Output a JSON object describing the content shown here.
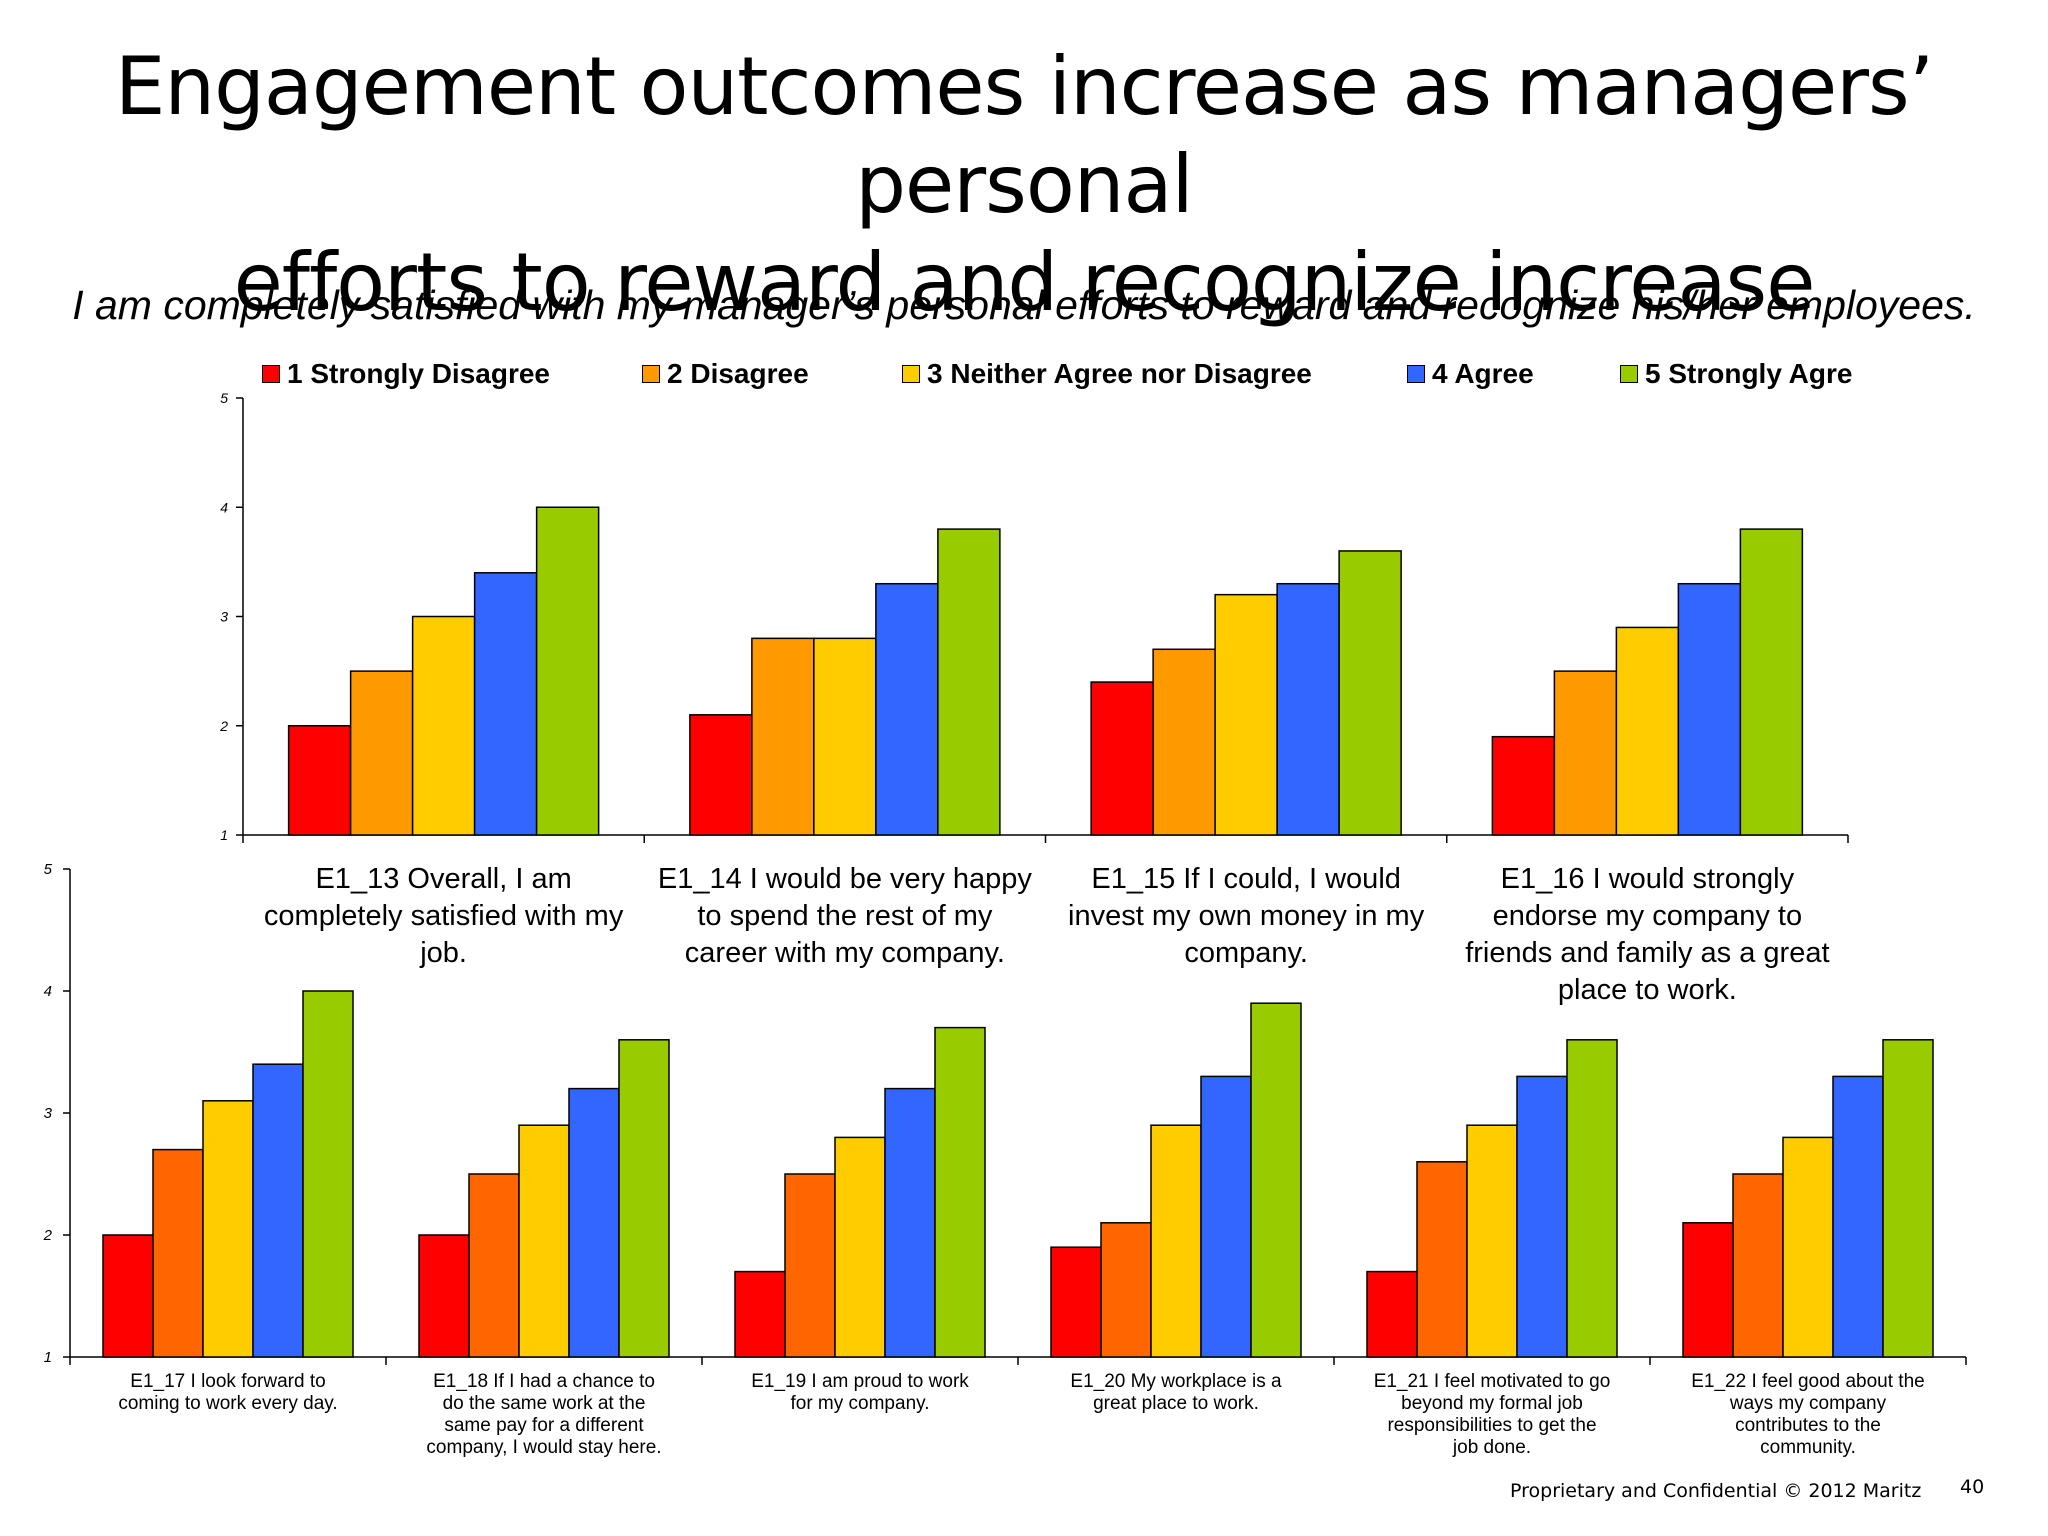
{
  "title_line1": "Engagement outcomes increase as managers’ personal",
  "title_line2": "efforts to reward and recognize increase",
  "subtitle": "I am completely satisfied with my manager’s personal efforts to reward and recognize his/her employees.",
  "legend": [
    {
      "label": "1 Strongly Disagree",
      "color": "#ff0000"
    },
    {
      "label": "2 Disagree",
      "color": "#ff9900"
    },
    {
      "label": "3 Neither Agree nor Disagree",
      "color": "#ffcc00"
    },
    {
      "label": "4 Agree",
      "color": "#3366ff"
    },
    {
      "label": "5 Strongly Agre",
      "color": "#99cc00"
    }
  ],
  "footer": "Proprietary and Confidential © 2012 Maritz",
  "page_number": "40",
  "chart_data": [
    {
      "type": "bar",
      "ylim": [
        1,
        5
      ],
      "yticks": [
        "1",
        "2",
        "3",
        "4",
        "5"
      ],
      "series_colors": [
        "#ff0000",
        "#ff9900",
        "#ffcc00",
        "#3366ff",
        "#99cc00"
      ],
      "categories": [
        {
          "label_lines": [
            "E1_13 Overall, I am",
            "completely satisfied with my",
            "job."
          ],
          "values": [
            2.0,
            2.5,
            3.0,
            3.4,
            4.0
          ]
        },
        {
          "label_lines": [
            "E1_14 I would be very happy",
            "to spend the rest of my",
            "career with my company."
          ],
          "values": [
            2.1,
            2.8,
            2.8,
            3.3,
            3.8
          ]
        },
        {
          "label_lines": [
            "E1_15 If I could, I would",
            "invest my own money in my",
            "company."
          ],
          "values": [
            2.4,
            2.7,
            3.2,
            3.3,
            3.6
          ]
        },
        {
          "label_lines": [
            "E1_16 I would strongly",
            "endorse my company to",
            "friends and family as a great",
            "place to work."
          ],
          "values": [
            1.9,
            2.5,
            2.9,
            3.3,
            3.8
          ]
        }
      ]
    },
    {
      "type": "bar",
      "ylim": [
        1,
        5
      ],
      "yticks": [
        "1",
        "2",
        "3",
        "4",
        "5"
      ],
      "series_colors": [
        "#ff0000",
        "#ff6600",
        "#ffcc00",
        "#3366ff",
        "#99cc00"
      ],
      "categories": [
        {
          "label_lines": [
            "E1_17 I look forward to",
            "coming to work every day."
          ],
          "values": [
            2.0,
            2.7,
            3.1,
            3.4,
            4.0
          ]
        },
        {
          "label_lines": [
            "E1_18 If I had a chance to",
            "do the same work at the",
            "same pay for a different",
            "company, I would stay here."
          ],
          "values": [
            2.0,
            2.5,
            2.9,
            3.2,
            3.6
          ]
        },
        {
          "label_lines": [
            "E1_19 I am proud to work",
            "for my company."
          ],
          "values": [
            1.7,
            2.5,
            2.8,
            3.2,
            3.7
          ]
        },
        {
          "label_lines": [
            "E1_20 My workplace is a",
            "great place to work."
          ],
          "values": [
            1.9,
            2.1,
            2.9,
            3.3,
            3.9
          ]
        },
        {
          "label_lines": [
            "E1_21 I feel motivated to go",
            "beyond my formal job",
            "responsibilities to get the",
            "job done."
          ],
          "values": [
            1.7,
            2.6,
            2.9,
            3.3,
            3.6
          ]
        },
        {
          "label_lines": [
            "E1_22 I feel good about the",
            "ways my company",
            "contributes to the",
            "community."
          ],
          "values": [
            2.1,
            2.5,
            2.8,
            3.3,
            3.6
          ]
        }
      ]
    }
  ]
}
